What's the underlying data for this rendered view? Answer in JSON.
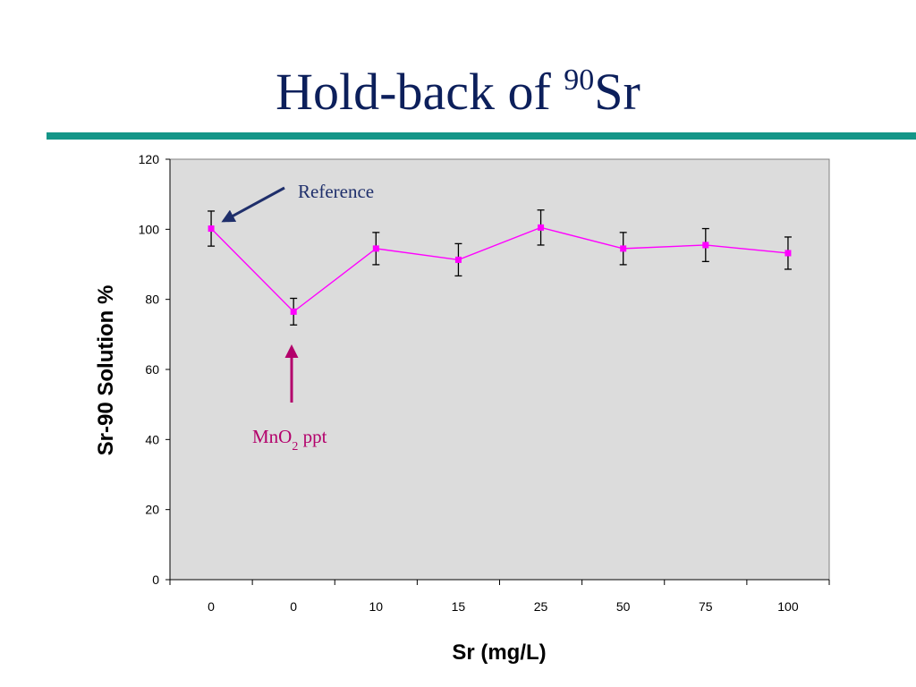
{
  "slide": {
    "title_main": "Hold-back of ",
    "title_sup": "90",
    "title_tail": "Sr",
    "rule_color": "#149688",
    "title_color": "#0c1f5b"
  },
  "chart_data": {
    "type": "line",
    "title": "Hold-back of 90Sr",
    "xlabel": "Sr (mg/L)",
    "ylabel": "Sr-90 Solution %",
    "categories": [
      "0",
      "0",
      "10",
      "15",
      "25",
      "50",
      "75",
      "100"
    ],
    "series": [
      {
        "values": [
          100.2,
          76.5,
          94.5,
          91.3,
          100.5,
          94.5,
          95.5,
          93.2
        ],
        "errors": [
          5.0,
          3.8,
          4.6,
          4.6,
          5.0,
          4.6,
          4.7,
          4.6
        ],
        "color": "#ff00ff",
        "marker": "square"
      }
    ],
    "ylim": [
      0,
      120
    ],
    "yticks": [
      0,
      20,
      40,
      60,
      80,
      100,
      120
    ],
    "grid": false,
    "plot_background": "#dcdcdc",
    "legend": "none",
    "annotations": [
      {
        "text": "Reference",
        "points_to_index": 0,
        "color": "#1f2f6b"
      },
      {
        "text": "MnO",
        "subscript": "2",
        "suffix": " ppt",
        "points_to_index": 1,
        "color": "#b3006b"
      }
    ]
  }
}
